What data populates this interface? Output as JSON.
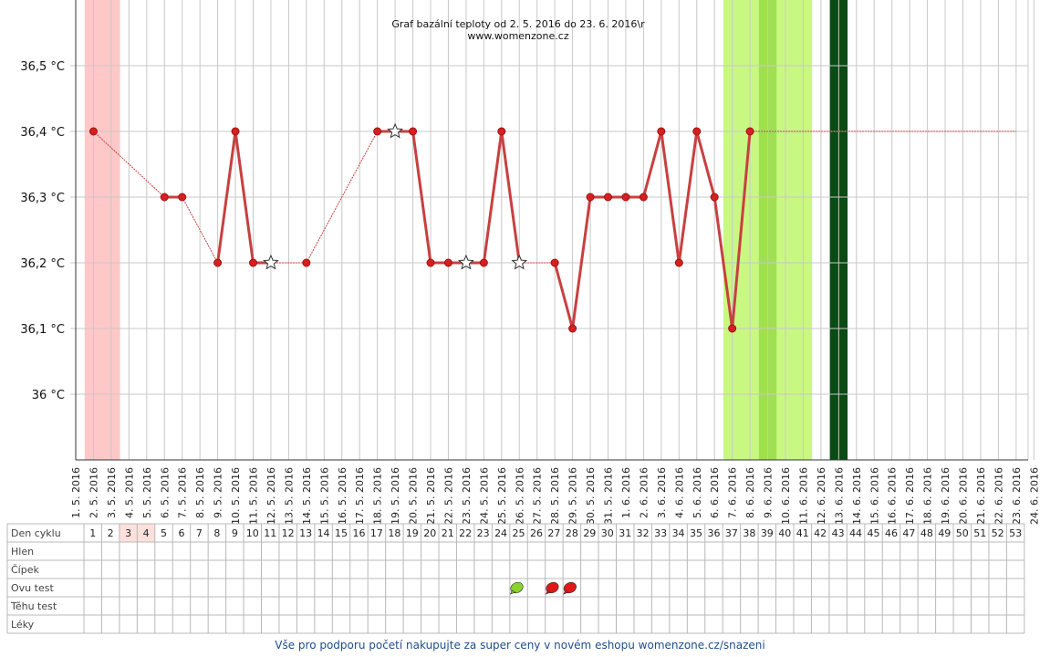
{
  "chart_data": {
    "type": "line",
    "title": "Graf bazální teploty od 2. 5. 2016 do 23. 6. 2016\\r",
    "subtitle": "www.womenzone.cz",
    "ylim": [
      35.9,
      36.6
    ],
    "yticks": [
      {
        "value": 36.0,
        "label": "36 °C"
      },
      {
        "value": 36.1,
        "label": "36,1 °C"
      },
      {
        "value": 36.2,
        "label": "36,2 °C"
      },
      {
        "value": 36.3,
        "label": "36,3 °C"
      },
      {
        "value": 36.4,
        "label": "36,4 °C"
      },
      {
        "value": 36.5,
        "label": "36,5 °C"
      }
    ],
    "dates": [
      "1. 5. 2016",
      "2. 5. 2016",
      "3. 5. 2016",
      "4. 5. 2016",
      "5. 5. 2016",
      "6. 5. 2016",
      "7. 5. 2016",
      "8. 5. 2016",
      "9. 5. 2016",
      "10. 5. 2016",
      "11. 5. 2016",
      "12. 5. 2016",
      "13. 5. 2016",
      "14. 5. 2016",
      "15. 5. 2016",
      "16. 5. 2016",
      "17. 5. 2016",
      "18. 5. 2016",
      "19. 5. 2016",
      "20. 5. 2016",
      "21. 5. 2016",
      "22. 5. 2016",
      "23. 5. 2016",
      "24. 5. 2016",
      "25. 5. 2016",
      "26. 5. 2016",
      "27. 5. 2016",
      "28. 5. 2016",
      "29. 5. 2016",
      "30. 5. 2016",
      "31. 5. 2016",
      "1. 6. 2016",
      "2. 6. 2016",
      "3. 6. 2016",
      "4. 6. 2016",
      "5. 6. 2016",
      "6. 6. 2016",
      "7. 6. 2016",
      "8. 6. 2016",
      "9. 6. 2016",
      "10. 6. 2016",
      "11. 6. 2016",
      "12. 6. 2016",
      "13. 6. 2016",
      "14. 6. 2016",
      "15. 6. 2016",
      "16. 6. 2016",
      "17. 6. 2016",
      "18. 6. 2016",
      "19. 6. 2016",
      "20. 6. 2016",
      "21. 6. 2016",
      "22. 6. 2016",
      "23. 6. 2016",
      "24. 6. 2016"
    ],
    "points": [
      {
        "date": "2. 5. 2016",
        "value": 36.4,
        "marker": "dot"
      },
      {
        "date": "6. 5. 2016",
        "value": 36.3,
        "marker": "dot"
      },
      {
        "date": "7. 5. 2016",
        "value": 36.3,
        "marker": "dot"
      },
      {
        "date": "9. 5. 2016",
        "value": 36.2,
        "marker": "dot"
      },
      {
        "date": "10. 5. 2016",
        "value": 36.4,
        "marker": "dot"
      },
      {
        "date": "11. 5. 2016",
        "value": 36.2,
        "marker": "dot"
      },
      {
        "date": "12. 5. 2016",
        "value": 36.2,
        "marker": "star"
      },
      {
        "date": "14. 5. 2016",
        "value": 36.2,
        "marker": "dot"
      },
      {
        "date": "18. 5. 2016",
        "value": 36.4,
        "marker": "dot"
      },
      {
        "date": "19. 5. 2016",
        "value": 36.4,
        "marker": "star"
      },
      {
        "date": "20. 5. 2016",
        "value": 36.4,
        "marker": "dot"
      },
      {
        "date": "21. 5. 2016",
        "value": 36.2,
        "marker": "dot"
      },
      {
        "date": "22. 5. 2016",
        "value": 36.2,
        "marker": "dot"
      },
      {
        "date": "23. 5. 2016",
        "value": 36.2,
        "marker": "star"
      },
      {
        "date": "24. 5. 2016",
        "value": 36.2,
        "marker": "dot"
      },
      {
        "date": "25. 5. 2016",
        "value": 36.4,
        "marker": "dot"
      },
      {
        "date": "26. 5. 2016",
        "value": 36.2,
        "marker": "star"
      },
      {
        "date": "28. 5. 2016",
        "value": 36.2,
        "marker": "dot"
      },
      {
        "date": "29. 5. 2016",
        "value": 36.1,
        "marker": "dot"
      },
      {
        "date": "30. 5. 2016",
        "value": 36.3,
        "marker": "dot"
      },
      {
        "date": "31. 5. 2016",
        "value": 36.3,
        "marker": "dot"
      },
      {
        "date": "1. 6. 2016",
        "value": 36.3,
        "marker": "dot"
      },
      {
        "date": "2. 6. 2016",
        "value": 36.3,
        "marker": "dot"
      },
      {
        "date": "3. 6. 2016",
        "value": 36.4,
        "marker": "dot"
      },
      {
        "date": "4. 6. 2016",
        "value": 36.2,
        "marker": "dot"
      },
      {
        "date": "5. 6. 2016",
        "value": 36.4,
        "marker": "dot"
      },
      {
        "date": "6. 6. 2016",
        "value": 36.3,
        "marker": "dot"
      },
      {
        "date": "7. 6. 2016",
        "value": 36.1,
        "marker": "dot"
      },
      {
        "date": "8. 6. 2016",
        "value": 36.4,
        "marker": "dot"
      }
    ],
    "continuation": {
      "from": "8. 6. 2016",
      "to": "23. 6. 2016",
      "value": 36.4
    },
    "bands": [
      {
        "from": "2. 5. 2016",
        "to": "3. 5. 2016",
        "color": "#ffc8c8"
      },
      {
        "from": "7. 6. 2016",
        "to": "11. 6. 2016",
        "color": "#c8f882"
      },
      {
        "from": "9. 6. 2016",
        "to": "9. 6. 2016",
        "color": "#a0e050"
      },
      {
        "from": "13. 6. 2016",
        "to": "13. 6. 2016",
        "color": "#0a4a14"
      }
    ],
    "series_color": "#c84040",
    "grid": true
  },
  "table": {
    "rows": [
      "Den cyklu",
      "Hlen",
      "Čípek",
      "Ovu test",
      "Těhu test",
      "Léky"
    ],
    "cycle_days": [
      "1",
      "2",
      "3",
      "4",
      "5",
      "6",
      "7",
      "8",
      "9",
      "10",
      "11",
      "12",
      "13",
      "14",
      "15",
      "16",
      "17",
      "18",
      "19",
      "20",
      "21",
      "22",
      "23",
      "24",
      "25",
      "26",
      "27",
      "28",
      "29",
      "30",
      "31",
      "32",
      "33",
      "34",
      "35",
      "36",
      "37",
      "38",
      "39",
      "40",
      "41",
      "42",
      "43",
      "44",
      "45",
      "46",
      "47",
      "48",
      "49",
      "50",
      "51",
      "52",
      "53"
    ],
    "highlight_days": [
      3,
      4
    ],
    "ovu_test": [
      {
        "day": 25,
        "result": "negative",
        "color": "#8cd22c"
      },
      {
        "day": 27,
        "result": "positive",
        "color": "#e01818"
      },
      {
        "day": 28,
        "result": "positive",
        "color": "#e01818"
      }
    ]
  },
  "footer": "Vše pro podporu početí nakupujte za super ceny v novém eshopu womenzone.cz/snazeni"
}
